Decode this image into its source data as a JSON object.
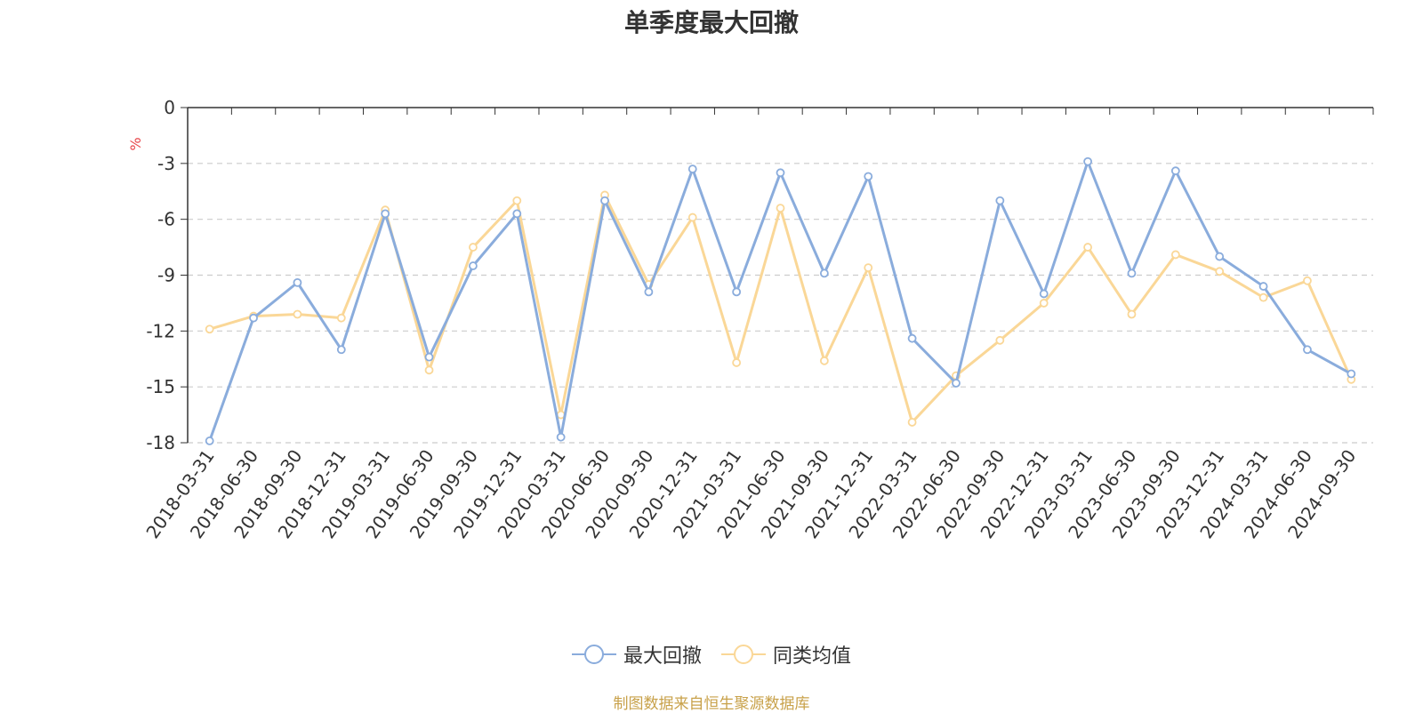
{
  "title": "单季度最大回撤",
  "source_note": "制图数据来自恒生聚源数据库",
  "colors": {
    "series1": "#8aacdc",
    "series2": "#fad797",
    "ylabel": "#e8464a",
    "grid": "#cccccc",
    "axis": "#333333"
  },
  "legend": [
    {
      "name": "最大回撤",
      "icon": "circle-line-icon"
    },
    {
      "name": "同类均值",
      "icon": "circle-line-icon"
    }
  ],
  "chart_data": {
    "type": "line",
    "title": "单季度最大回撤",
    "ylabel": "%",
    "ylim": [
      -18,
      0
    ],
    "yticks": [
      0,
      -3,
      -6,
      -9,
      -12,
      -15,
      -18
    ],
    "grid": true,
    "legend_position": "bottom",
    "x": [
      "2018-03-31",
      "2018-06-30",
      "2018-09-30",
      "2018-12-31",
      "2019-03-31",
      "2019-06-30",
      "2019-09-30",
      "2019-12-31",
      "2020-03-31",
      "2020-06-30",
      "2020-09-30",
      "2020-12-31",
      "2021-03-31",
      "2021-06-30",
      "2021-09-30",
      "2021-12-31",
      "2022-03-31",
      "2022-06-30",
      "2022-09-30",
      "2022-12-31",
      "2023-03-31",
      "2023-06-30",
      "2023-09-30",
      "2023-12-31",
      "2024-03-31",
      "2024-06-30",
      "2024-09-30"
    ],
    "series": [
      {
        "name": "最大回撤",
        "values": [
          -17.9,
          -11.3,
          -9.4,
          -13.0,
          -5.7,
          -13.4,
          -8.5,
          -5.7,
          -17.7,
          -5.0,
          -9.9,
          -3.3,
          -9.9,
          -3.5,
          -8.9,
          -3.7,
          -12.4,
          -14.8,
          -5.0,
          -10.0,
          -2.9,
          -8.9,
          -3.4,
          -8.0,
          -9.6,
          -13.0,
          -14.3
        ]
      },
      {
        "name": "同类均值",
        "values": [
          -11.9,
          -11.2,
          -11.1,
          -11.3,
          -5.5,
          -14.1,
          -7.5,
          -5.0,
          -16.5,
          -4.7,
          -9.5,
          -5.9,
          -13.7,
          -5.4,
          -13.6,
          -8.6,
          -16.9,
          -14.4,
          -12.5,
          -10.5,
          -7.5,
          -11.1,
          -7.9,
          -8.8,
          -10.2,
          -9.3,
          -14.6
        ]
      }
    ]
  }
}
